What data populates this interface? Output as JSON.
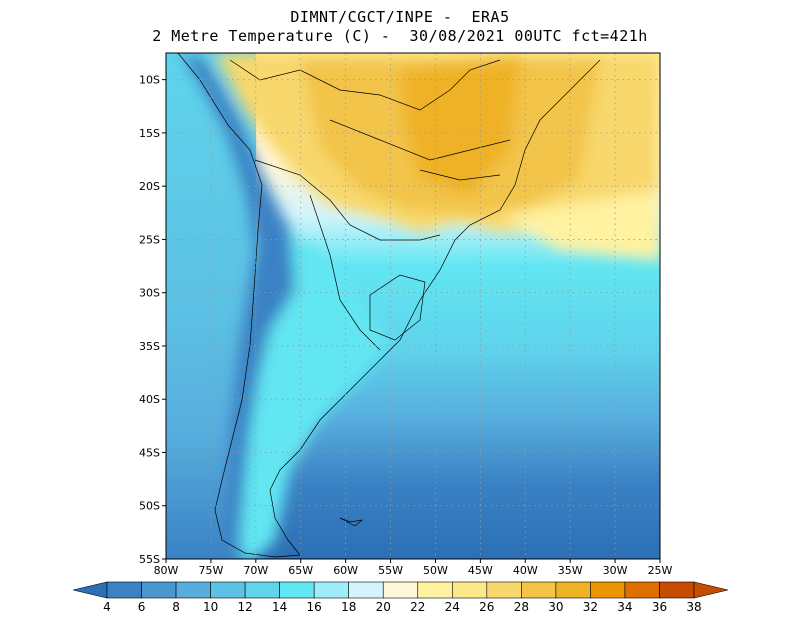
{
  "header": {
    "line1": "DIMNT/CGCT/INPE -  ERA5",
    "line2": "2 Metre Temperature (C) -  30/08/2021 00UTC fct=421h"
  },
  "map": {
    "lon_range": [
      -80,
      -25
    ],
    "lat_range": [
      -55,
      -7.5
    ],
    "lat_ticks": [
      "10S",
      "15S",
      "20S",
      "25S",
      "30S",
      "35S",
      "40S",
      "45S",
      "50S",
      "55S"
    ],
    "lon_ticks": [
      "80W",
      "75W",
      "70W",
      "65W",
      "60W",
      "55W",
      "50W",
      "45W",
      "40W",
      "35W",
      "30W",
      "25W"
    ],
    "gridlines": "dotted"
  },
  "colorbar": {
    "labels": [
      "4",
      "6",
      "8",
      "10",
      "12",
      "14",
      "16",
      "18",
      "20",
      "22",
      "24",
      "26",
      "28",
      "30",
      "32",
      "34",
      "36",
      "38"
    ],
    "colors": [
      "#2c6fb5",
      "#3a82c4",
      "#4a97d0",
      "#57aede",
      "#5cc1e4",
      "#5fd4ec",
      "#62e6f2",
      "#9eeefa",
      "#d3f4fb",
      "#fff7da",
      "#fff2a0",
      "#fde98a",
      "#f8d86c",
      "#f2c448",
      "#efb225",
      "#ec9500",
      "#df6e00",
      "#c64d00"
    ]
  }
}
